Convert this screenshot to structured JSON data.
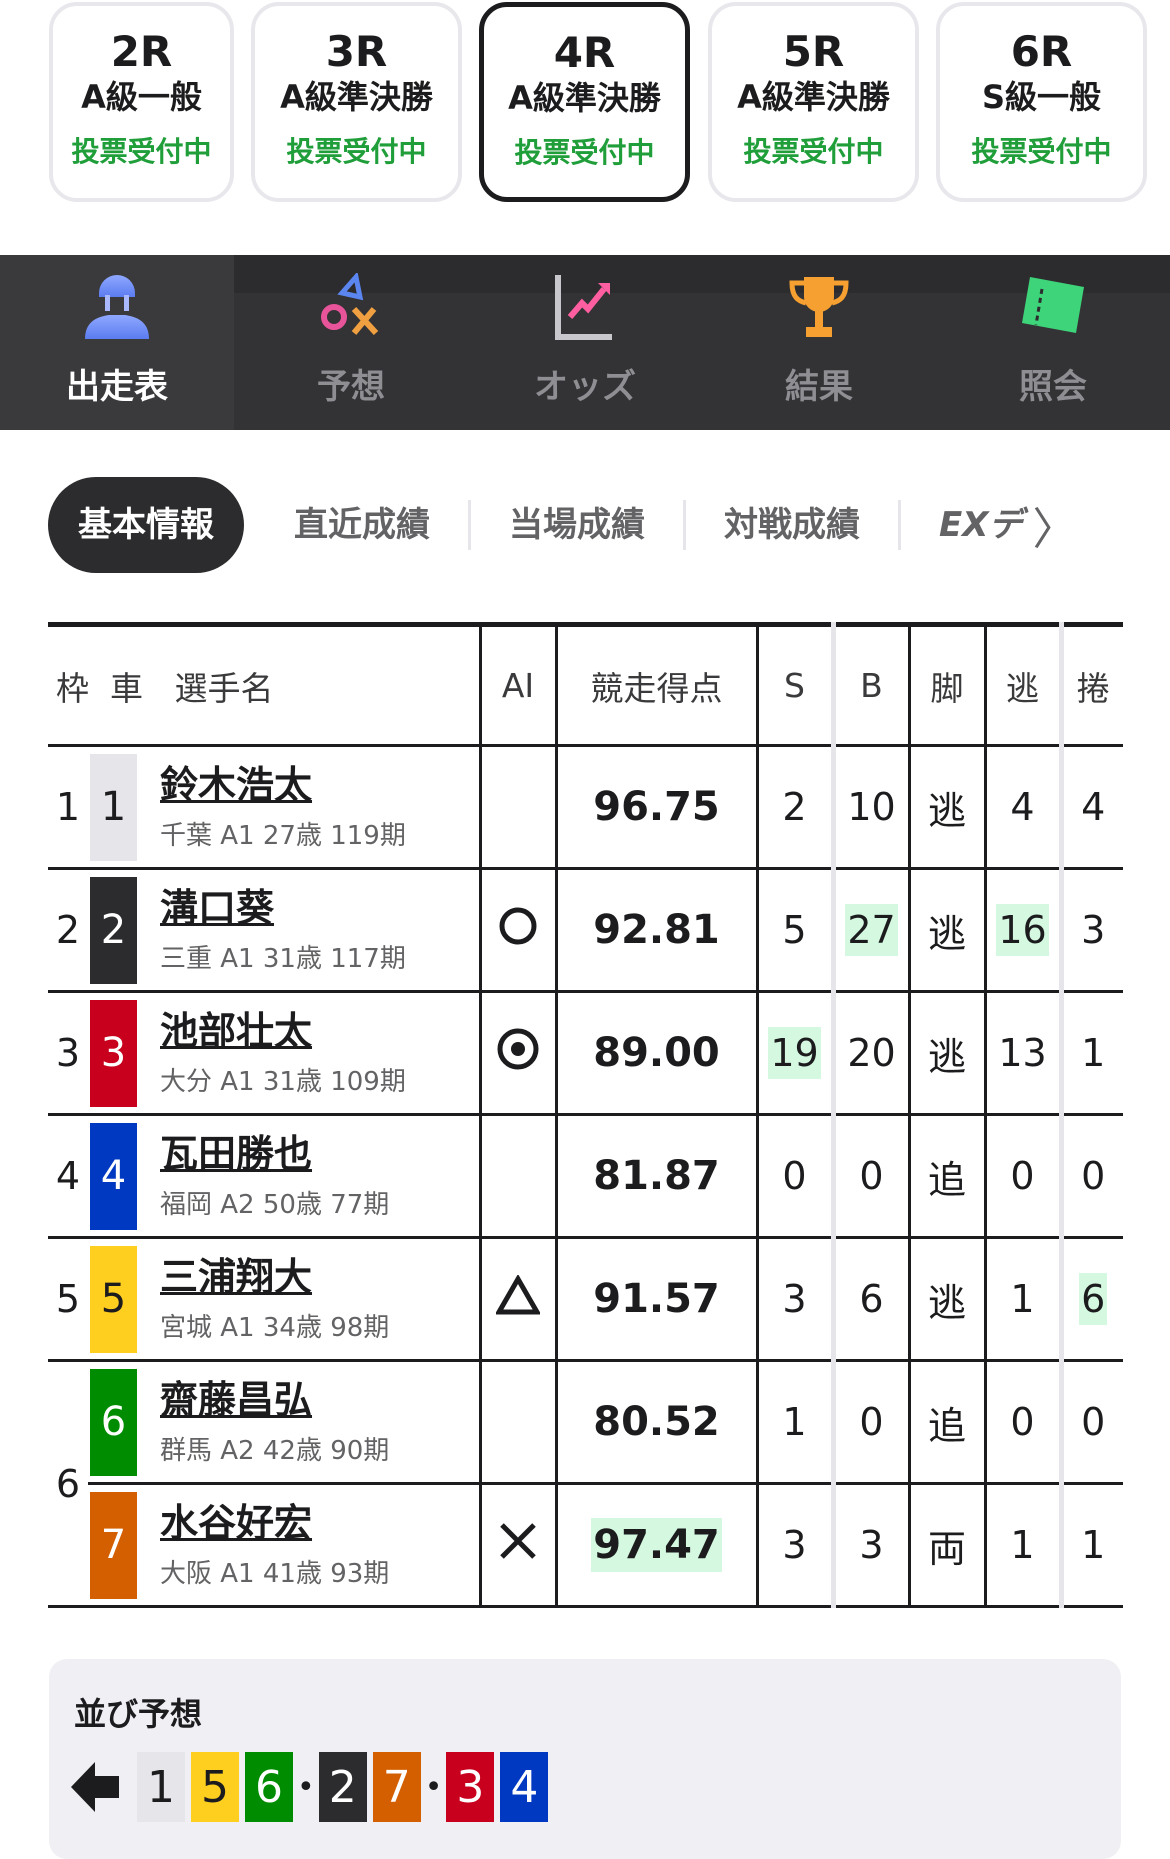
{
  "races": [
    {
      "r": "2R",
      "grade": "A級一般",
      "status": "投票受付中"
    },
    {
      "r": "3R",
      "grade": "A級準決勝",
      "status": "投票受付中"
    },
    {
      "r": "4R",
      "grade": "A級準決勝",
      "status": "投票受付中",
      "selected": true
    },
    {
      "r": "5R",
      "grade": "A級準決勝",
      "status": "投票受付中"
    },
    {
      "r": "6R",
      "grade": "S級一般",
      "status": "投票受付中"
    }
  ],
  "nav": [
    {
      "label": "出走表",
      "icon": "rider-icon",
      "active": true
    },
    {
      "label": "予想",
      "icon": "prediction-icon"
    },
    {
      "label": "オッズ",
      "icon": "odds-chart-icon"
    },
    {
      "label": "結果",
      "icon": "trophy-icon"
    },
    {
      "label": "照会",
      "icon": "ticket-icon"
    }
  ],
  "subtabs": [
    "基本情報",
    "直近成績",
    "当場成績",
    "対戦成績",
    "EXデ"
  ],
  "table": {
    "headers": {
      "waku": "枠",
      "car": "車",
      "name": "選手名",
      "ai": "AI",
      "score": "競走得点",
      "s": "S",
      "b": "B",
      "kyaku": "脚",
      "nige": "逃",
      "makuri": "捲"
    },
    "rows": [
      {
        "waku": "1",
        "car": "1",
        "name": "鈴木浩太",
        "info": "千葉 A1 27歳 119期",
        "ai": "",
        "score": "96.75",
        "s": "2",
        "b": "10",
        "kyaku": "逃",
        "nige": "4",
        "makuri": "4"
      },
      {
        "waku": "2",
        "car": "2",
        "name": "溝口葵",
        "info": "三重 A1 31歳 117期",
        "ai": "○",
        "score": "92.81",
        "s": "5",
        "b": "27",
        "kyaku": "逃",
        "nige": "16",
        "makuri": "3"
      },
      {
        "waku": "3",
        "car": "3",
        "name": "池部壮太",
        "info": "大分 A1 31歳 109期",
        "ai": "◎",
        "score": "89.00",
        "s": "19",
        "b": "20",
        "kyaku": "逃",
        "nige": "13",
        "makuri": "1"
      },
      {
        "waku": "4",
        "car": "4",
        "name": "瓦田勝也",
        "info": "福岡 A2 50歳 77期",
        "ai": "",
        "score": "81.87",
        "s": "0",
        "b": "0",
        "kyaku": "追",
        "nige": "0",
        "makuri": "0"
      },
      {
        "waku": "5",
        "car": "5",
        "name": "三浦翔大",
        "info": "宮城 A1 34歳 98期",
        "ai": "△",
        "score": "91.57",
        "s": "3",
        "b": "6",
        "kyaku": "逃",
        "nige": "1",
        "makuri": "6"
      },
      {
        "waku": "6",
        "car": "6",
        "name": "齋藤昌弘",
        "info": "群馬 A2 42歳 90期",
        "ai": "",
        "score": "80.52",
        "s": "1",
        "b": "0",
        "kyaku": "追",
        "nige": "0",
        "makuri": "0"
      },
      {
        "waku": "",
        "car": "7",
        "name": "水谷好宏",
        "info": "大阪 A1 41歳 93期",
        "ai": "×",
        "score": "97.47",
        "s": "3",
        "b": "3",
        "kyaku": "両",
        "nige": "1",
        "makuri": "1"
      }
    ]
  },
  "car_colors": {
    "1": "#e5e5ea",
    "2": "#2c2c2e",
    "3": "#c8001e",
    "4": "#0039c1",
    "5": "#ffcf1f",
    "6": "#008c00",
    "7": "#d45f00"
  },
  "highlight_color": "#d4f8e0",
  "line_prediction": {
    "title": "並び予想",
    "groups": [
      [
        "1",
        "5",
        "6"
      ],
      [
        "2",
        "7"
      ],
      [
        "3",
        "4"
      ]
    ]
  }
}
